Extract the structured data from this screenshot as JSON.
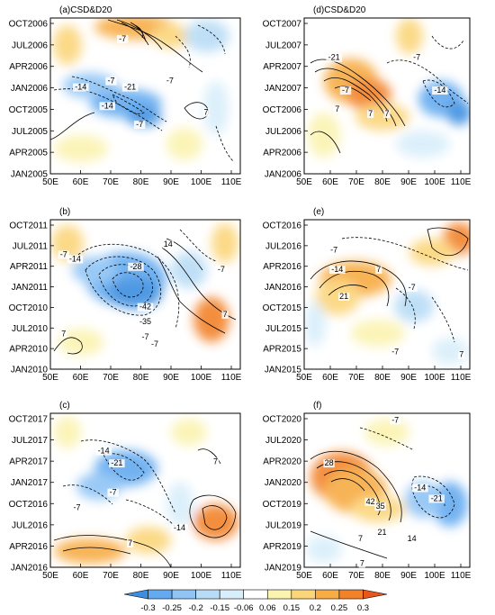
{
  "chart_data": [
    {
      "type": "heatmap",
      "panel_label": "(a)CSD&D20",
      "x_ticks": [
        "50E",
        "60E",
        "70E",
        "80E",
        "90E",
        "100E",
        "110E"
      ],
      "y_ticks": [
        "JAN2005",
        "APR2005",
        "JUL2005",
        "OCT2005",
        "JAN2006",
        "APR2006",
        "JUL2006",
        "OCT2006"
      ],
      "contour_labels": [
        "-7",
        "-14",
        "-21",
        "-7",
        "-7",
        "-7",
        "7",
        "-14"
      ]
    },
    {
      "type": "heatmap",
      "panel_label": "(d)CSD&D20",
      "x_ticks": [
        "50E",
        "60E",
        "70E",
        "80E",
        "90E",
        "100E",
        "110E"
      ],
      "y_ticks": [
        "JAN2006",
        "APR2006",
        "JUL2006",
        "OCT2006",
        "JAN2007",
        "APR2007",
        "JUL2007",
        "OCT2007"
      ],
      "contour_labels": [
        "-21",
        "7",
        "-7",
        "-7",
        "-14",
        "7",
        "7"
      ]
    },
    {
      "type": "heatmap",
      "panel_label": "(b)",
      "x_ticks": [
        "50E",
        "60E",
        "70E",
        "80E",
        "90E",
        "100E",
        "110E"
      ],
      "y_ticks": [
        "JAN2010",
        "APR2010",
        "JUL2010",
        "OCT2010",
        "JAN2011",
        "APR2011",
        "JUL2011",
        "OCT2011"
      ],
      "contour_labels": [
        "-7",
        "-14",
        "-28",
        "14",
        "-7",
        "-42",
        "-35",
        "-7",
        "7",
        "7",
        "-7"
      ]
    },
    {
      "type": "heatmap",
      "panel_label": "(e)",
      "x_ticks": [
        "50E",
        "60E",
        "70E",
        "80E",
        "90E",
        "100E",
        "110E"
      ],
      "y_ticks": [
        "JAN2015",
        "APR2015",
        "JUL2015",
        "OCT2015",
        "JAN2016",
        "APR2016",
        "JUL2016",
        "OCT2016"
      ],
      "contour_labels": [
        "-7",
        "-14",
        "7",
        "21",
        "-7",
        "-7",
        "7"
      ]
    },
    {
      "type": "heatmap",
      "panel_label": "(c)",
      "x_ticks": [
        "50E",
        "60E",
        "70E",
        "80E",
        "90E",
        "100E",
        "110E"
      ],
      "y_ticks": [
        "JAN2016",
        "APR2016",
        "JUL2016",
        "OCT2016",
        "JAN2017",
        "APR2017",
        "JUL2017",
        "OCT2017"
      ],
      "contour_labels": [
        "-14",
        "-21",
        "-7",
        "-7",
        "-14",
        "7",
        "7"
      ]
    },
    {
      "type": "heatmap",
      "panel_label": "(f)",
      "x_ticks": [
        "50E",
        "60E",
        "70E",
        "80E",
        "90E",
        "100E",
        "110E"
      ],
      "y_ticks": [
        "JAN2019",
        "APR2019",
        "JUL2019",
        "OCT2019",
        "JAN2020",
        "APR2020",
        "JUL2020",
        "OCT2020"
      ],
      "contour_labels": [
        "28",
        "42",
        "35",
        "21",
        "7",
        "14",
        "-7",
        "-14",
        "-21",
        "7"
      ]
    }
  ],
  "colorbar": {
    "ticks": [
      "-0.3",
      "-0.25",
      "-0.2",
      "-0.15",
      "-0.06",
      "0.06",
      "0.15",
      "0.2",
      "0.25",
      "0.3"
    ],
    "colors": [
      "#3c8fe0",
      "#64aaf0",
      "#8fc4f5",
      "#b8dcf5",
      "#d8eefa",
      "#ffffff",
      "#fbf3b0",
      "#fbd57a",
      "#f7ac45",
      "#f2822a",
      "#e8561c"
    ]
  }
}
